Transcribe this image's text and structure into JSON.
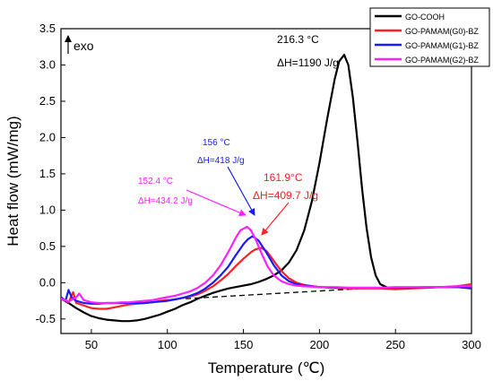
{
  "chart_data": {
    "type": "line",
    "title": "",
    "xlabel": "Temperature (℃)",
    "ylabel": "Heat flow (mW/mg)",
    "xlim": [
      30,
      300
    ],
    "ylim": [
      -0.7,
      3.5
    ],
    "xticks": [
      50,
      100,
      150,
      200,
      250,
      300
    ],
    "yticks": [
      -0.5,
      0.0,
      0.5,
      1.0,
      1.5,
      2.0,
      2.5,
      3.0,
      3.5
    ],
    "ytick_labels": [
      "-0.5",
      "0.0",
      "0.5",
      "1.0",
      "1.5",
      "2.0",
      "2.5",
      "3.0",
      "3.5"
    ],
    "grid": false,
    "legend_position": "top-right",
    "exo_label": "exo",
    "series": [
      {
        "name": "GO-COOH",
        "color": "#000000",
        "x": [
          30,
          35,
          40,
          45,
          50,
          55,
          60,
          65,
          70,
          75,
          80,
          85,
          90,
          95,
          100,
          105,
          110,
          115,
          120,
          125,
          130,
          135,
          140,
          145,
          150,
          155,
          160,
          165,
          170,
          175,
          180,
          185,
          190,
          195,
          200,
          205,
          210,
          213,
          216.3,
          219,
          222,
          225,
          228,
          231,
          234,
          237,
          240,
          245,
          250,
          255,
          260,
          270,
          280,
          290,
          300
        ],
        "y": [
          -0.22,
          -0.28,
          -0.35,
          -0.41,
          -0.46,
          -0.49,
          -0.51,
          -0.52,
          -0.53,
          -0.53,
          -0.52,
          -0.5,
          -0.47,
          -0.44,
          -0.4,
          -0.36,
          -0.31,
          -0.27,
          -0.22,
          -0.18,
          -0.14,
          -0.11,
          -0.08,
          -0.06,
          -0.04,
          -0.02,
          0.01,
          0.05,
          0.1,
          0.17,
          0.28,
          0.45,
          0.72,
          1.12,
          1.65,
          2.25,
          2.8,
          3.05,
          3.14,
          3.0,
          2.55,
          1.95,
          1.3,
          0.75,
          0.35,
          0.1,
          -0.02,
          -0.07,
          -0.08,
          -0.08,
          -0.07,
          -0.07,
          -0.06,
          -0.06,
          -0.07
        ]
      },
      {
        "name": "GO-PAMAM(G0)-BZ",
        "color": "#ff2020",
        "x": [
          30,
          35,
          38,
          40,
          43,
          47,
          50,
          55,
          60,
          65,
          70,
          75,
          80,
          85,
          90,
          95,
          100,
          105,
          110,
          115,
          120,
          125,
          130,
          135,
          140,
          145,
          150,
          155,
          158,
          161.9,
          165,
          168,
          171,
          175,
          180,
          185,
          190,
          200,
          210,
          220,
          230,
          240,
          250,
          260,
          270,
          280,
          290,
          300
        ],
        "y": [
          -0.22,
          -0.27,
          -0.13,
          -0.28,
          -0.3,
          -0.33,
          -0.35,
          -0.36,
          -0.36,
          -0.34,
          -0.32,
          -0.3,
          -0.29,
          -0.28,
          -0.27,
          -0.25,
          -0.24,
          -0.23,
          -0.21,
          -0.19,
          -0.16,
          -0.11,
          -0.05,
          0.03,
          0.12,
          0.23,
          0.33,
          0.42,
          0.46,
          0.48,
          0.44,
          0.36,
          0.27,
          0.16,
          0.06,
          0.0,
          -0.03,
          -0.06,
          -0.07,
          -0.08,
          -0.08,
          -0.08,
          -0.09,
          -0.08,
          -0.07,
          -0.06,
          -0.05,
          -0.02
        ]
      },
      {
        "name": "GO-PAMAM(G1)-BZ",
        "color": "#1a1aff",
        "x": [
          30,
          33,
          35,
          37,
          40,
          45,
          50,
          55,
          60,
          65,
          70,
          75,
          80,
          85,
          90,
          95,
          100,
          105,
          110,
          115,
          120,
          125,
          130,
          135,
          140,
          145,
          150,
          153,
          156,
          160,
          165,
          170,
          175,
          180,
          185,
          190,
          200,
          210,
          220,
          230,
          240,
          250,
          260,
          270,
          280,
          290,
          300
        ],
        "y": [
          -0.2,
          -0.25,
          -0.1,
          -0.2,
          -0.25,
          -0.28,
          -0.29,
          -0.29,
          -0.28,
          -0.28,
          -0.28,
          -0.28,
          -0.28,
          -0.28,
          -0.27,
          -0.26,
          -0.25,
          -0.23,
          -0.21,
          -0.18,
          -0.14,
          -0.08,
          0.0,
          0.1,
          0.22,
          0.38,
          0.53,
          0.6,
          0.64,
          0.58,
          0.42,
          0.24,
          0.1,
          0.02,
          -0.02,
          -0.04,
          -0.06,
          -0.07,
          -0.07,
          -0.07,
          -0.07,
          -0.07,
          -0.07,
          -0.06,
          -0.06,
          -0.06,
          -0.08
        ]
      },
      {
        "name": "GO-PAMAM(G2)-BZ",
        "color": "#ff20ff",
        "x": [
          30,
          35,
          40,
          42,
          45,
          50,
          55,
          60,
          65,
          70,
          75,
          80,
          85,
          90,
          95,
          100,
          105,
          110,
          115,
          120,
          125,
          130,
          135,
          140,
          145,
          148,
          152.4,
          155,
          158,
          162,
          166,
          170,
          175,
          180,
          185,
          190,
          200,
          210,
          220,
          230,
          240,
          250,
          260,
          270,
          280,
          290,
          300
        ],
        "y": [
          -0.22,
          -0.26,
          -0.2,
          -0.15,
          -0.24,
          -0.27,
          -0.28,
          -0.28,
          -0.28,
          -0.27,
          -0.27,
          -0.26,
          -0.25,
          -0.24,
          -0.22,
          -0.2,
          -0.18,
          -0.15,
          -0.12,
          -0.07,
          0.0,
          0.1,
          0.24,
          0.42,
          0.62,
          0.72,
          0.77,
          0.72,
          0.6,
          0.4,
          0.22,
          0.1,
          0.02,
          -0.02,
          -0.04,
          -0.05,
          -0.06,
          -0.06,
          -0.07,
          -0.07,
          -0.07,
          -0.06,
          -0.06,
          -0.06,
          -0.06,
          -0.05,
          -0.05
        ]
      }
    ],
    "baseline": {
      "x": [
        112,
        245
      ],
      "y": [
        -0.22,
        -0.06
      ]
    },
    "annotations": [
      {
        "series": "GO-COOH",
        "temp": "216.3 °C",
        "enthalpy": "ΔH=1190 J/g",
        "color": "#000000"
      },
      {
        "series": "GO-PAMAM(G1)-BZ",
        "temp": "156 °C",
        "enthalpy": "ΔH=418 J/g",
        "color": "#1a1aff"
      },
      {
        "series": "GO-PAMAM(G0)-BZ",
        "temp": "161.9°C",
        "enthalpy": "ΔH=409.7 J/g",
        "color": "#ff2020"
      },
      {
        "series": "GO-PAMAM(G2)-BZ",
        "temp": "152.4 °C",
        "enthalpy": "ΔH=434.2 J/g",
        "color": "#ff20ff"
      }
    ]
  }
}
